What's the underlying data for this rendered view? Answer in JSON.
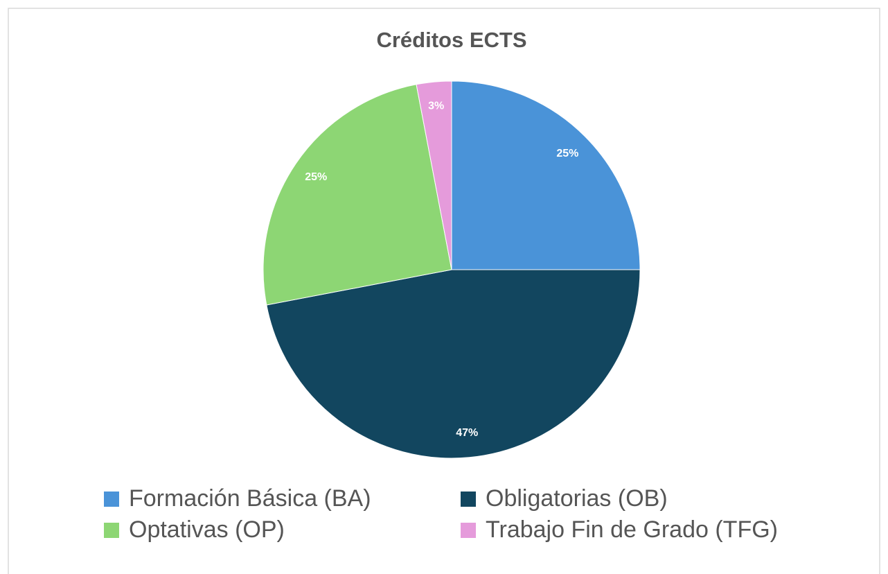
{
  "chart_data": {
    "type": "pie",
    "title": "Créditos ECTS",
    "categories": [
      "Formación Básica (BA)",
      "Obligatorias (OB)",
      "Optativas (OP)",
      "Trabajo Fin de Grado (TFG)"
    ],
    "values": [
      25,
      47,
      25,
      3
    ],
    "value_labels": [
      "25%",
      "47%",
      "25%",
      "3%"
    ],
    "colors": [
      "#4a93d8",
      "#12465f",
      "#8dd674",
      "#e59bdb"
    ],
    "legend": "bottom"
  }
}
